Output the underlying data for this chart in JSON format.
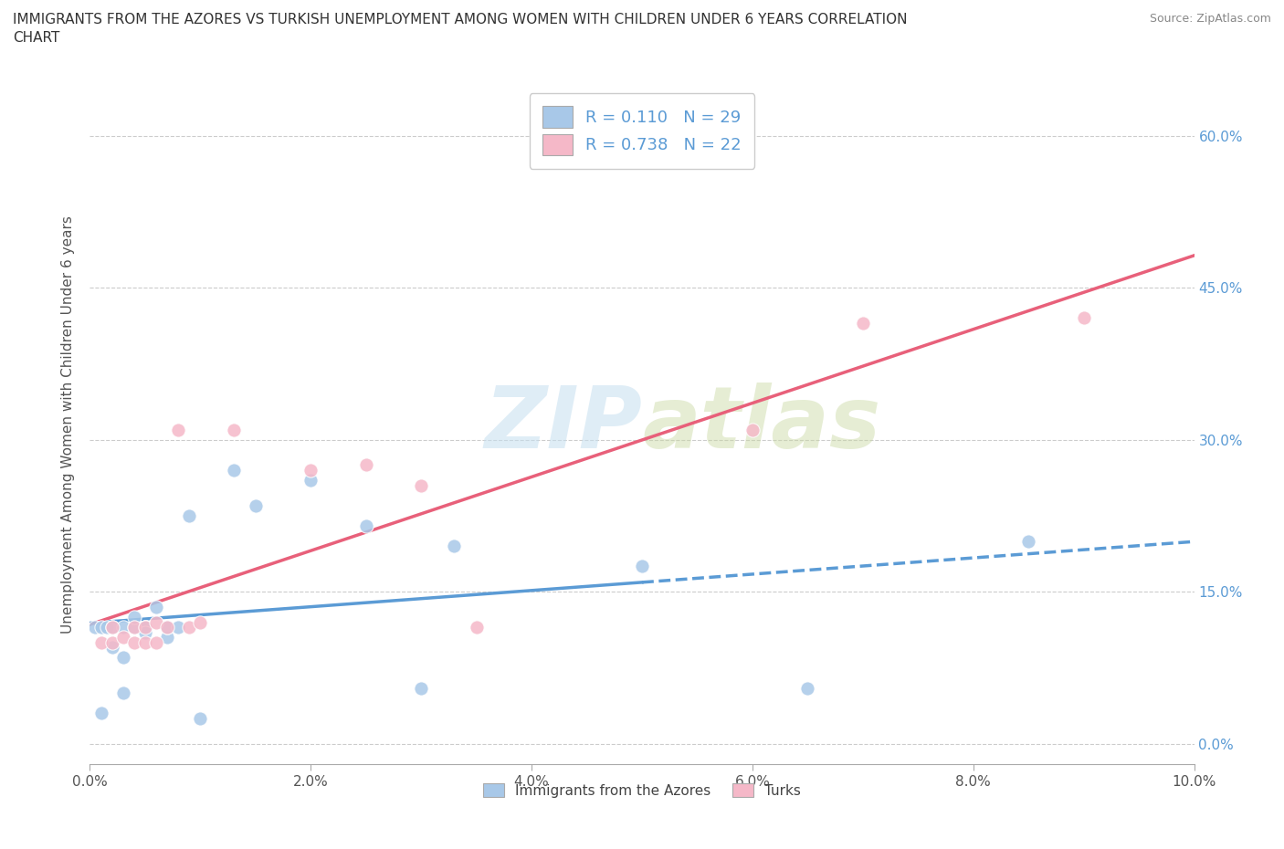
{
  "title_line1": "IMMIGRANTS FROM THE AZORES VS TURKISH UNEMPLOYMENT AMONG WOMEN WITH CHILDREN UNDER 6 YEARS CORRELATION",
  "title_line2": "CHART",
  "source": "Source: ZipAtlas.com",
  "ylabel": "Unemployment Among Women with Children Under 6 years",
  "watermark": "ZIPatlas",
  "legend_r1": "R = 0.110   N = 29",
  "legend_r2": "R = 0.738   N = 22",
  "color_azores": "#a8c8e8",
  "color_turks": "#f5b8c8",
  "color_azores_line": "#5b9bd5",
  "color_turks_line": "#e8607a",
  "color_right_axis": "#5b9bd5",
  "xmin": 0.0,
  "xmax": 0.1,
  "ymin": -0.02,
  "ymax": 0.65,
  "x_ticks": [
    0.0,
    0.02,
    0.04,
    0.06,
    0.08,
    0.1
  ],
  "y_ticks": [
    0.0,
    0.15,
    0.3,
    0.45,
    0.6
  ],
  "azores_x": [
    0.0005,
    0.001,
    0.001,
    0.0015,
    0.002,
    0.002,
    0.003,
    0.003,
    0.003,
    0.004,
    0.004,
    0.005,
    0.005,
    0.005,
    0.006,
    0.007,
    0.007,
    0.008,
    0.009,
    0.01,
    0.013,
    0.015,
    0.02,
    0.025,
    0.03,
    0.033,
    0.05,
    0.065,
    0.085
  ],
  "azores_y": [
    0.115,
    0.03,
    0.115,
    0.115,
    0.095,
    0.115,
    0.05,
    0.085,
    0.115,
    0.115,
    0.125,
    0.115,
    0.115,
    0.11,
    0.135,
    0.105,
    0.115,
    0.115,
    0.225,
    0.025,
    0.27,
    0.235,
    0.26,
    0.215,
    0.055,
    0.195,
    0.175,
    0.055,
    0.2
  ],
  "turks_x": [
    0.001,
    0.002,
    0.002,
    0.003,
    0.004,
    0.004,
    0.005,
    0.005,
    0.006,
    0.006,
    0.007,
    0.008,
    0.009,
    0.01,
    0.013,
    0.02,
    0.025,
    0.03,
    0.035,
    0.06,
    0.07,
    0.09
  ],
  "turks_y": [
    0.1,
    0.1,
    0.115,
    0.105,
    0.1,
    0.115,
    0.1,
    0.115,
    0.1,
    0.12,
    0.115,
    0.31,
    0.115,
    0.12,
    0.31,
    0.27,
    0.275,
    0.255,
    0.115,
    0.31,
    0.415,
    0.42
  ],
  "grid_color": "#cccccc",
  "background": "#ffffff"
}
